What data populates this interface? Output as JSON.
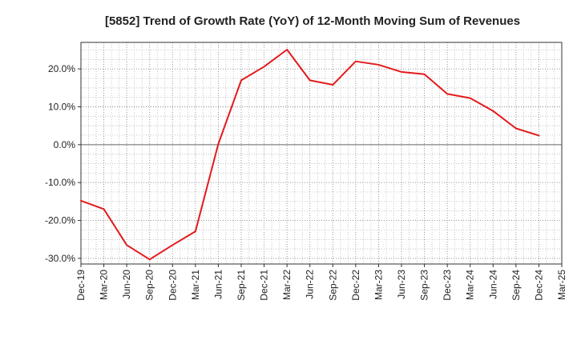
{
  "chart_data": {
    "type": "line",
    "title": "[5852]  Trend of Growth Rate (YoY) of 12-Month Moving Sum of Revenues",
    "xlabel": "",
    "ylabel": "",
    "x_ticks": [
      "Dec-19",
      "Mar-20",
      "Jun-20",
      "Sep-20",
      "Dec-20",
      "Mar-21",
      "Jun-21",
      "Sep-21",
      "Dec-21",
      "Mar-22",
      "Jun-22",
      "Sep-22",
      "Dec-22",
      "Mar-23",
      "Jun-23",
      "Sep-23",
      "Dec-23",
      "Mar-24",
      "Jun-24",
      "Sep-24",
      "Dec-24",
      "Mar-25"
    ],
    "y_ticks": [
      20,
      10,
      0,
      -10,
      -20,
      -30
    ],
    "y_tick_labels": [
      "20.0%",
      "10.0%",
      "0.0%",
      "-10.0%",
      "-20.0%",
      "-30.0%"
    ],
    "ylim": [
      -31.5,
      27.0
    ],
    "grid": true,
    "series": [
      {
        "color": "#e31a1c",
        "x": [
          "Dec-19",
          "Mar-20",
          "Jun-20",
          "Sep-20",
          "Dec-20",
          "Mar-21",
          "Jun-21",
          "Sep-21",
          "Dec-21",
          "Mar-22",
          "Jun-22",
          "Sep-22",
          "Dec-22",
          "Mar-23",
          "Jun-23",
          "Sep-23",
          "Dec-23",
          "Mar-24",
          "Jun-24",
          "Sep-24",
          "Dec-24"
        ],
        "values": [
          -14.8,
          -17.0,
          -26.5,
          -30.3,
          -26.5,
          -22.9,
          0.2,
          17.0,
          20.6,
          25.1,
          17.0,
          15.8,
          22.0,
          21.1,
          19.2,
          18.6,
          13.4,
          12.3,
          8.9,
          4.3,
          2.4
        ]
      }
    ]
  }
}
